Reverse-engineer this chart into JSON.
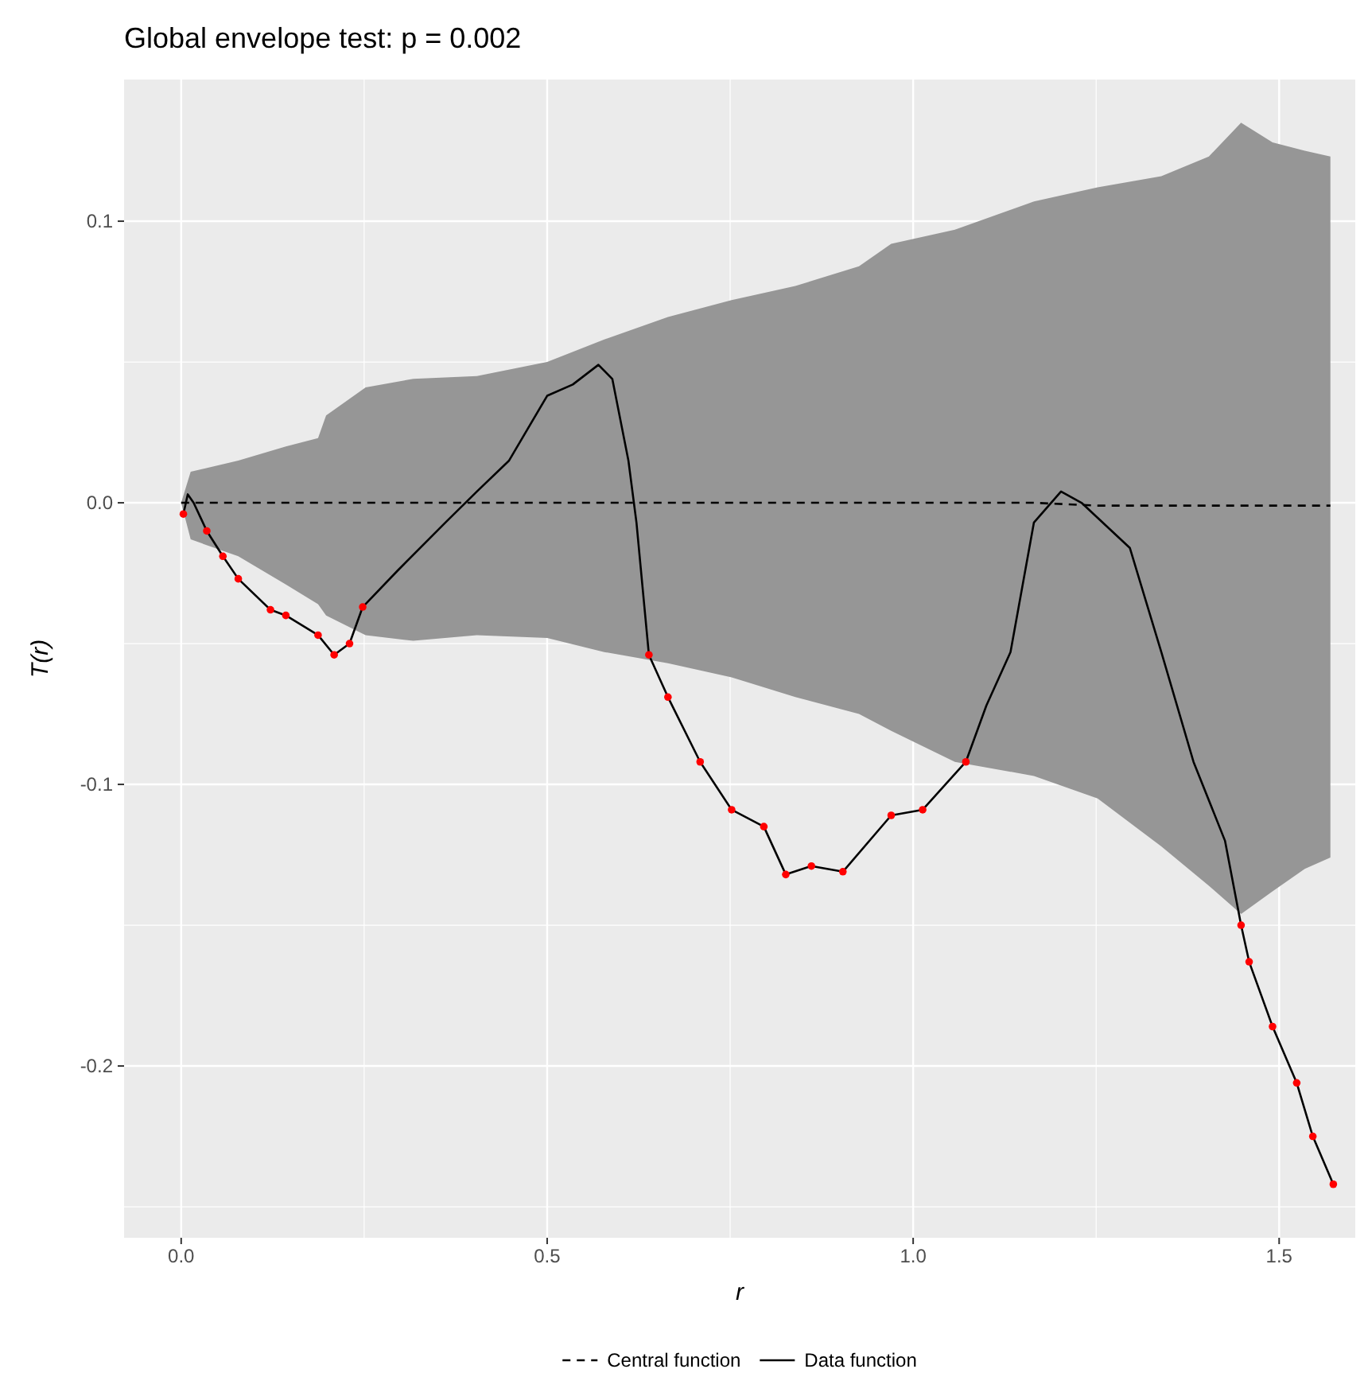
{
  "chart_data": {
    "type": "line",
    "title": "Global envelope test: p = 0.002",
    "xlabel": "r",
    "ylabel": "T(r)",
    "xlim": [
      -0.078,
      1.604
    ],
    "ylim": [
      -0.261,
      0.1503
    ],
    "xticks": [
      {
        "value": 0,
        "label": "0.0"
      },
      {
        "value": 0.25,
        "label": null
      },
      {
        "value": 0.5,
        "label": "0.5"
      },
      {
        "value": 0.75,
        "label": null
      },
      {
        "value": 1,
        "label": "1.0"
      },
      {
        "value": 1.25,
        "label": null
      },
      {
        "value": 1.5,
        "label": "1.5"
      }
    ],
    "yticks": [
      {
        "value": -0.25,
        "label": null
      },
      {
        "value": -0.2,
        "label": "-0.2"
      },
      {
        "value": -0.15,
        "label": null
      },
      {
        "value": -0.1,
        "label": "-0.1"
      },
      {
        "value": -0.05,
        "label": null
      },
      {
        "value": 0,
        "label": "0.0"
      },
      {
        "value": 0.05,
        "label": null
      },
      {
        "value": 0.1,
        "label": "0.1"
      }
    ],
    "grid": true,
    "legend": "bottom",
    "series": [
      {
        "name": "Central function",
        "type": "line",
        "color": "#000000",
        "line_style": "dashed",
        "x": [
          0,
          0.013,
          0.078,
          0.143,
          0.187,
          0.198,
          0.252,
          0.317,
          0.404,
          0.5,
          0.578,
          0.665,
          0.752,
          0.839,
          0.926,
          0.97,
          1.057,
          1.165,
          1.252,
          1.339,
          1.404,
          1.448,
          1.491,
          1.535,
          1.57
        ],
        "values": [
          0,
          0,
          0,
          0,
          0,
          0,
          0,
          0,
          0,
          0,
          0,
          0,
          0,
          0,
          0,
          0,
          0,
          0,
          -0.001,
          -0.001,
          -0.001,
          -0.001,
          -0.001,
          -0.001,
          -0.001
        ],
        "upper": [
          0,
          0.011,
          0.015,
          0.02,
          0.023,
          0.031,
          0.041,
          0.044,
          0.045,
          0.05,
          0.058,
          0.066,
          0.072,
          0.077,
          0.084,
          0.092,
          0.097,
          0.107,
          0.112,
          0.116,
          0.123,
          0.135,
          0.128,
          0.125,
          0.123
        ],
        "lower": [
          0,
          -0.013,
          -0.019,
          -0.029,
          -0.036,
          -0.04,
          -0.047,
          -0.049,
          -0.047,
          -0.048,
          -0.053,
          -0.057,
          -0.062,
          -0.069,
          -0.075,
          -0.081,
          -0.092,
          -0.097,
          -0.105,
          -0.122,
          -0.136,
          -0.146,
          -0.138,
          -0.13,
          -0.126
        ]
      },
      {
        "name": "Data function",
        "type": "line",
        "color": "#000000",
        "line_style": "solid",
        "x": [
          0.003,
          0.009,
          0.017,
          0.035,
          0.057,
          0.078,
          0.122,
          0.143,
          0.187,
          0.209,
          0.23,
          0.248,
          0.296,
          0.361,
          0.404,
          0.448,
          0.5,
          0.535,
          0.57,
          0.589,
          0.611,
          0.622,
          0.639,
          0.665,
          0.709,
          0.752,
          0.796,
          0.826,
          0.861,
          0.904,
          0.97,
          1.013,
          1.072,
          1.1,
          1.133,
          1.165,
          1.202,
          1.23,
          1.296,
          1.339,
          1.383,
          1.426,
          1.448,
          1.459,
          1.491,
          1.524,
          1.546,
          1.574
        ],
        "values": [
          -0.004,
          0.003,
          0,
          -0.01,
          -0.019,
          -0.027,
          -0.038,
          -0.04,
          -0.047,
          -0.054,
          -0.05,
          -0.037,
          -0.024,
          -0.007,
          0.004,
          0.015,
          0.038,
          0.042,
          0.049,
          0.044,
          0.015,
          -0.007,
          -0.054,
          -0.069,
          -0.092,
          -0.109,
          -0.115,
          -0.132,
          -0.129,
          -0.131,
          -0.111,
          -0.109,
          -0.092,
          -0.072,
          -0.053,
          -0.007,
          0.004,
          0,
          -0.016,
          -0.053,
          -0.092,
          -0.12,
          -0.15,
          -0.163,
          -0.186,
          -0.206,
          -0.225,
          -0.242
        ]
      },
      {
        "type": "scatter",
        "color": "#ff0000",
        "marker": "circle",
        "x": [
          0.003,
          0.035,
          0.057,
          0.078,
          0.122,
          0.143,
          0.187,
          0.209,
          0.23,
          0.248,
          0.639,
          0.665,
          0.709,
          0.752,
          0.796,
          0.826,
          0.861,
          0.904,
          0.97,
          1.013,
          1.072,
          1.448,
          1.459,
          1.491,
          1.524,
          1.546,
          1.574
        ],
        "values": [
          -0.004,
          -0.01,
          -0.019,
          -0.027,
          -0.038,
          -0.04,
          -0.047,
          -0.054,
          -0.05,
          -0.037,
          -0.054,
          -0.069,
          -0.092,
          -0.109,
          -0.115,
          -0.132,
          -0.129,
          -0.131,
          -0.111,
          -0.109,
          -0.092,
          -0.15,
          -0.163,
          -0.186,
          -0.206,
          -0.225,
          -0.242
        ]
      }
    ]
  }
}
